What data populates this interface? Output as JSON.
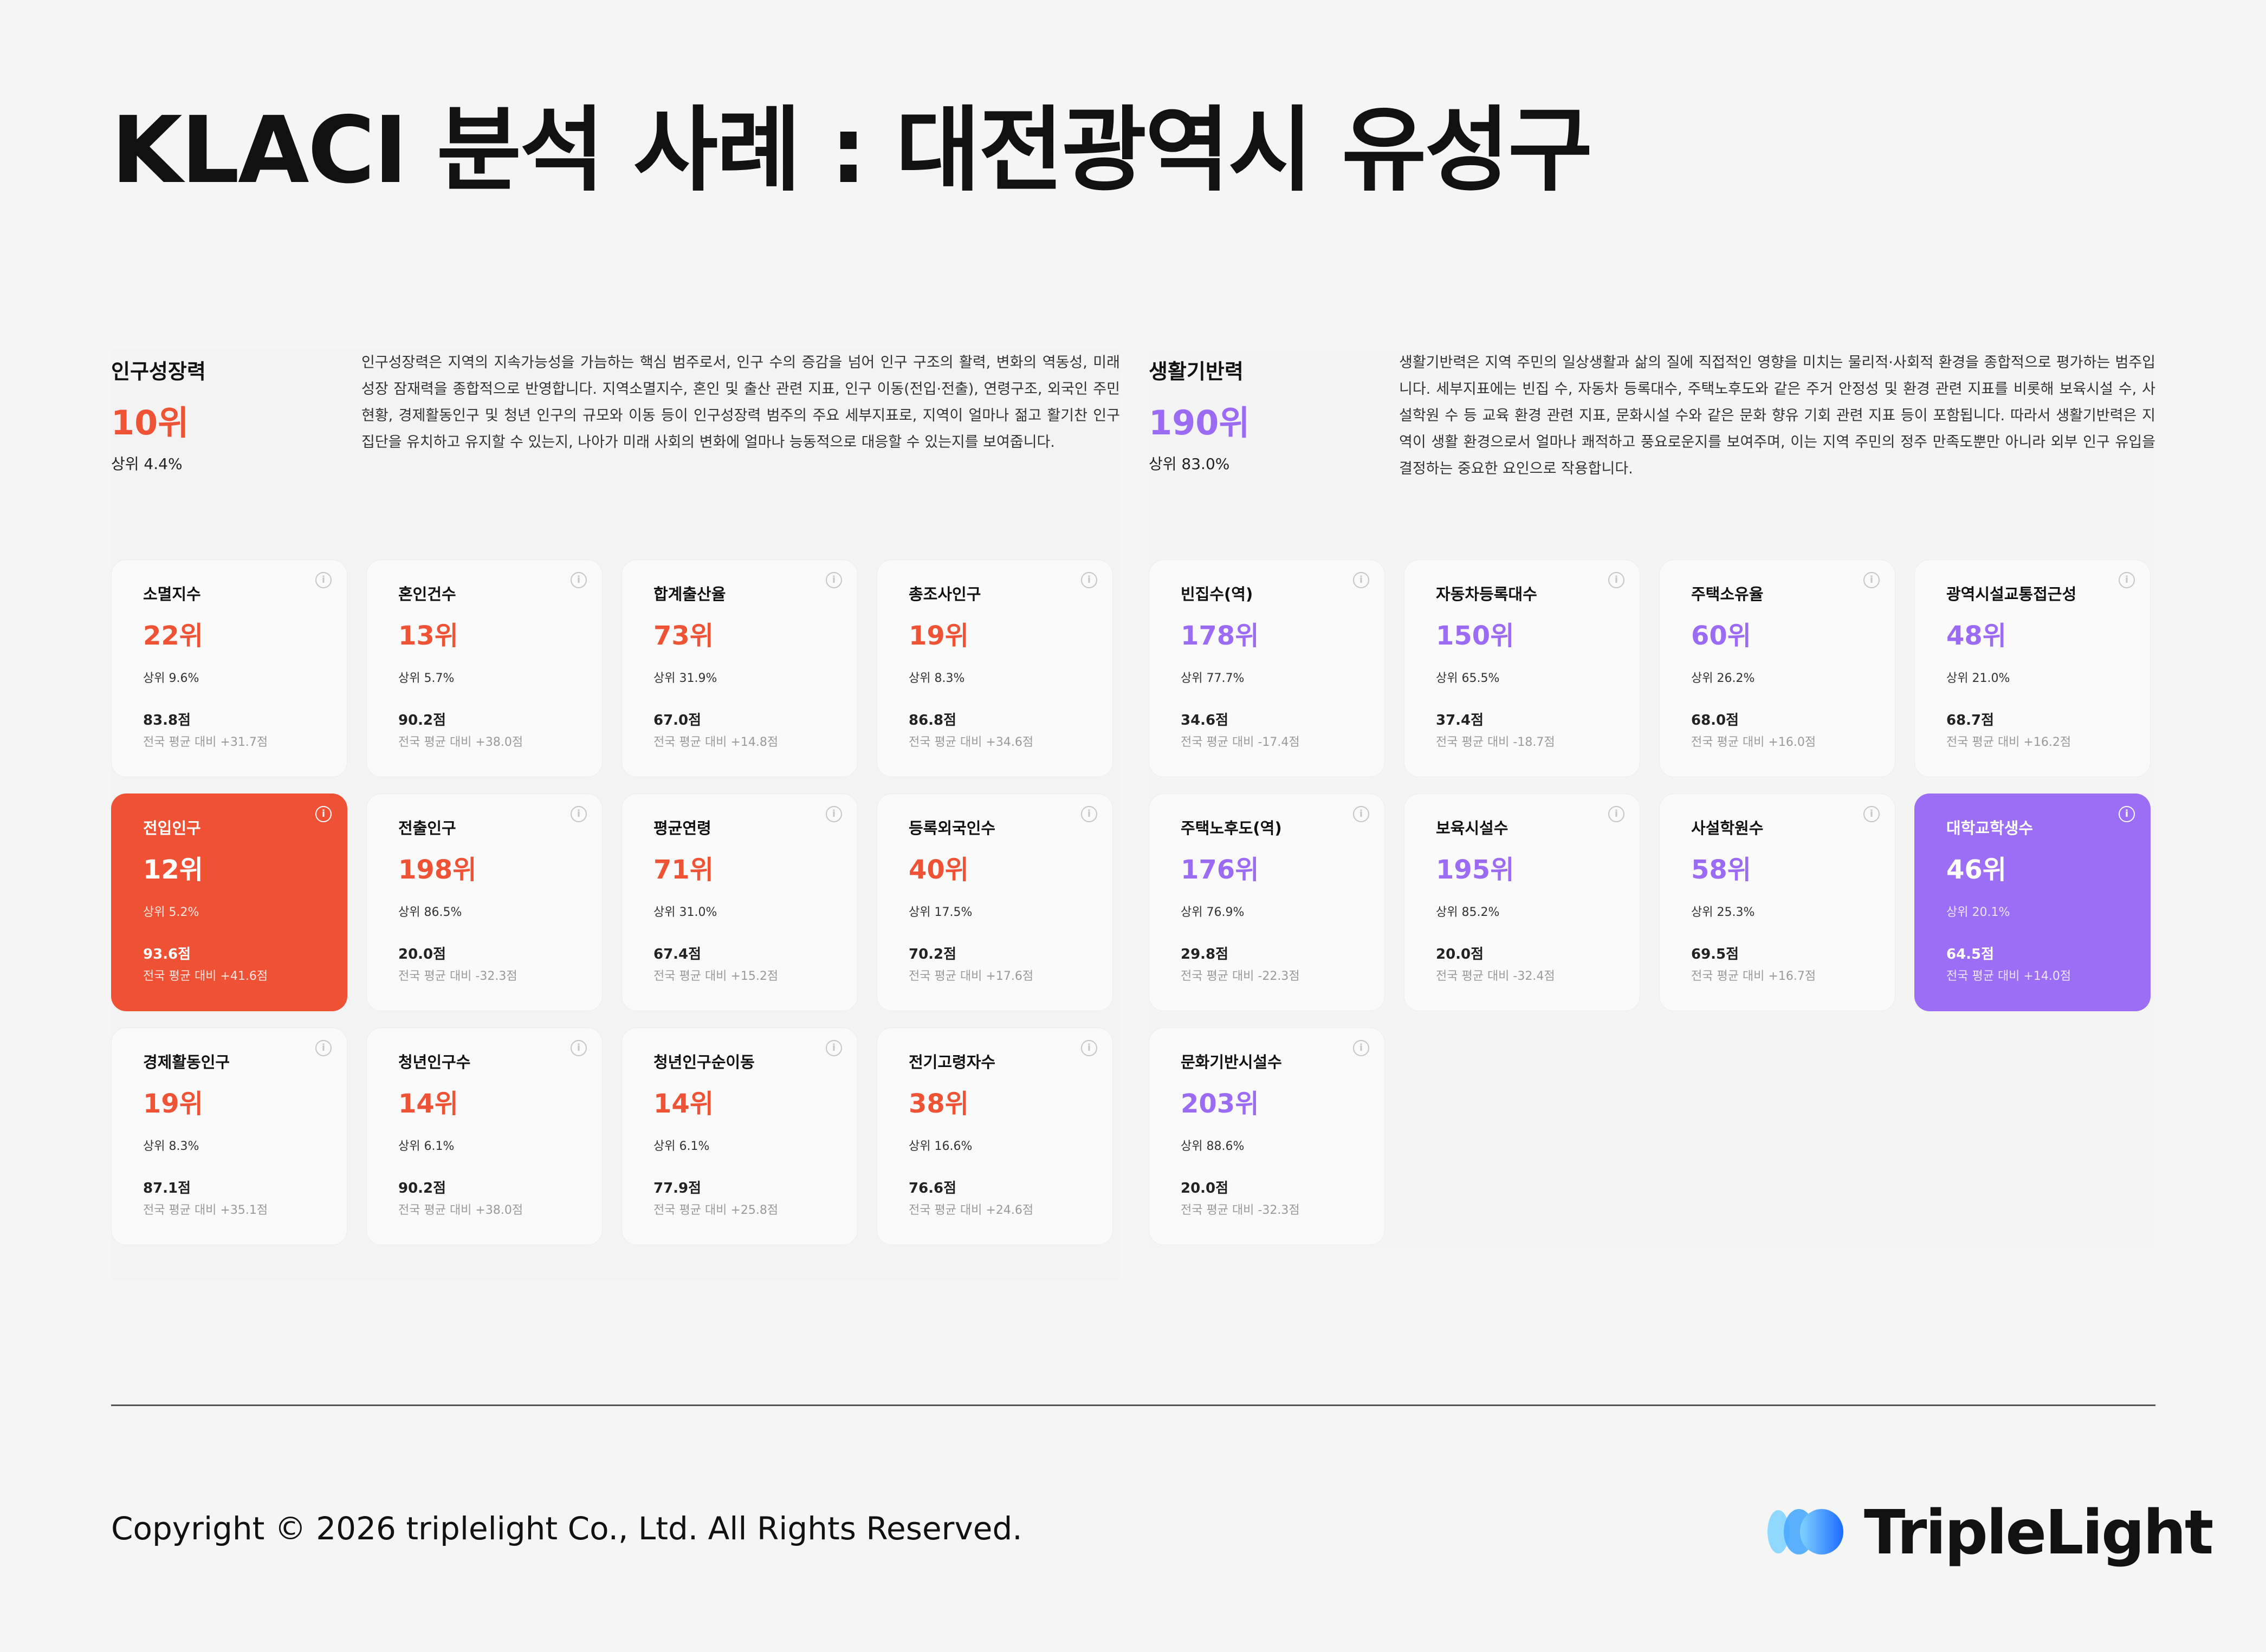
{
  "title": "KLACI 분석 사례 : 대전광역시 유성구",
  "accent_orange": "#ee5336",
  "accent_purple": "#9b6cf3",
  "sections": {
    "population": {
      "name": "인구성장력",
      "rank": "10위",
      "top": "상위 4.4%",
      "description": "인구성장력은 지역의 지속가능성을 가늠하는 핵심 범주로서, 인구 수의 증감을 넘어 인구 구조의 활력, 변화의 역동성, 미래 성장 잠재력을 종합적으로 반영합니다. 지역소멸지수, 혼인 및 출산 관련 지표, 인구 이동(전입·전출), 연령구조, 외국인 주민 현황, 경제활동인구 및 청년 인구의 규모와 이동 등이 인구성장력 범주의 주요 세부지표로, 지역이 얼마나 젊고 활기찬 인구 집단을 유치하고 유지할 수 있는지, 나아가 미래 사회의 변화에 얼마나 능동적으로 대응할 수 있는지를 보여줍니다.",
      "cards": [
        {
          "name": "소멸지수",
          "rank": "22위",
          "top": "상위 9.6%",
          "score": "83.8점",
          "diff": "전국 평균 대비 +31.7점"
        },
        {
          "name": "혼인건수",
          "rank": "13위",
          "top": "상위 5.7%",
          "score": "90.2점",
          "diff": "전국 평균 대비 +38.0점"
        },
        {
          "name": "합계출산율",
          "rank": "73위",
          "top": "상위 31.9%",
          "score": "67.0점",
          "diff": "전국 평균 대비 +14.8점"
        },
        {
          "name": "총조사인구",
          "rank": "19위",
          "top": "상위 8.3%",
          "score": "86.8점",
          "diff": "전국 평균 대비 +34.6점"
        },
        {
          "name": "전입인구",
          "rank": "12위",
          "top": "상위 5.2%",
          "score": "93.6점",
          "diff": "전국 평균 대비 +41.6점"
        },
        {
          "name": "전출인구",
          "rank": "198위",
          "top": "상위 86.5%",
          "score": "20.0점",
          "diff": "전국 평균 대비 -32.3점"
        },
        {
          "name": "평균연령",
          "rank": "71위",
          "top": "상위 31.0%",
          "score": "67.4점",
          "diff": "전국 평균 대비 +15.2점"
        },
        {
          "name": "등록외국인수",
          "rank": "40위",
          "top": "상위 17.5%",
          "score": "70.2점",
          "diff": "전국 평균 대비 +17.6점"
        },
        {
          "name": "경제활동인구",
          "rank": "19위",
          "top": "상위 8.3%",
          "score": "87.1점",
          "diff": "전국 평균 대비 +35.1점"
        },
        {
          "name": "청년인구수",
          "rank": "14위",
          "top": "상위 6.1%",
          "score": "90.2점",
          "diff": "전국 평균 대비 +38.0점"
        },
        {
          "name": "청년인구순이동",
          "rank": "14위",
          "top": "상위 6.1%",
          "score": "77.9점",
          "diff": "전국 평균 대비 +25.8점"
        },
        {
          "name": "전기고령자수",
          "rank": "38위",
          "top": "상위 16.6%",
          "score": "76.6점",
          "diff": "전국 평균 대비 +24.6점"
        }
      ]
    },
    "living": {
      "name": "생활기반력",
      "rank": "190위",
      "top": "상위 83.0%",
      "description": "생활기반력은 지역 주민의 일상생활과 삶의 질에 직접적인 영향을 미치는 물리적·사회적 환경을 종합적으로 평가하는 범주입니다. 세부지표에는 빈집 수, 자동차 등록대수, 주택노후도와 같은 주거 안정성 및 환경 관련 지표를 비롯해 보육시설 수, 사설학원 수 등 교육 환경 관련 지표, 문화시설 수와 같은 문화 향유 기회 관련 지표 등이 포함됩니다. 따라서 생활기반력은 지역이 생활 환경으로서 얼마나 쾌적하고 풍요로운지를 보여주며, 이는 지역 주민의 정주 만족도뿐만 아니라 외부 인구 유입을 결정하는 중요한 요인으로 작용합니다.",
      "cards": [
        {
          "name": "빈집수(역)",
          "rank": "178위",
          "top": "상위 77.7%",
          "score": "34.6점",
          "diff": "전국 평균 대비 -17.4점"
        },
        {
          "name": "자동차등록대수",
          "rank": "150위",
          "top": "상위 65.5%",
          "score": "37.4점",
          "diff": "전국 평균 대비 -18.7점"
        },
        {
          "name": "주택소유율",
          "rank": "60위",
          "top": "상위 26.2%",
          "score": "68.0점",
          "diff": "전국 평균 대비 +16.0점"
        },
        {
          "name": "광역시설교통접근성",
          "rank": "48위",
          "top": "상위 21.0%",
          "score": "68.7점",
          "diff": "전국 평균 대비 +16.2점"
        },
        {
          "name": "주택노후도(역)",
          "rank": "176위",
          "top": "상위 76.9%",
          "score": "29.8점",
          "diff": "전국 평균 대비 -22.3점"
        },
        {
          "name": "보육시설수",
          "rank": "195위",
          "top": "상위 85.2%",
          "score": "20.0점",
          "diff": "전국 평균 대비 -32.4점"
        },
        {
          "name": "사설학원수",
          "rank": "58위",
          "top": "상위 25.3%",
          "score": "69.5점",
          "diff": "전국 평균 대비 +16.7점"
        },
        {
          "name": "대학교학생수",
          "rank": "46위",
          "top": "상위 20.1%",
          "score": "64.5점",
          "diff": "전국 평균 대비 +14.0점"
        },
        {
          "name": "문화기반시설수",
          "rank": "203위",
          "top": "상위 88.6%",
          "score": "20.0점",
          "diff": "전국 평균 대비 -32.3점"
        }
      ]
    }
  },
  "info_icon": "info-icon",
  "footer": {
    "copyright": "Copyright © 2026 triplelight Co., Ltd. All Rights Reserved.",
    "logo_text": "TripleLight"
  }
}
